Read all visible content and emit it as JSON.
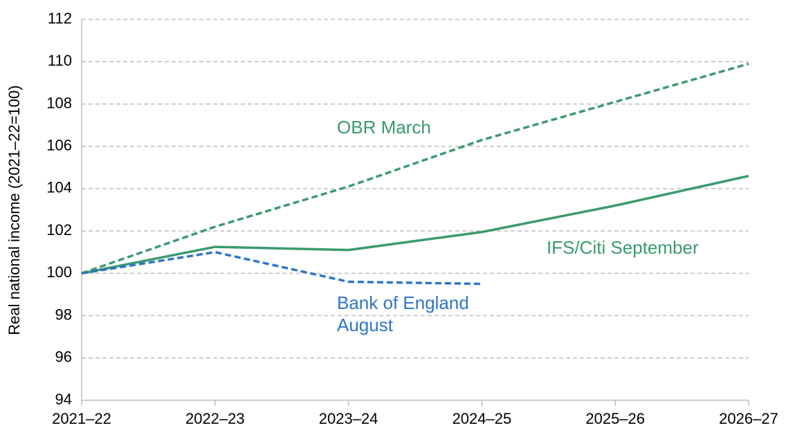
{
  "chart_data": {
    "type": "line",
    "y_axis_label": "Real national income (2021–22=100)",
    "categories": [
      "2021–22",
      "2022–23",
      "2023–24",
      "2024–25",
      "2025–26",
      "2026–27"
    ],
    "series": [
      {
        "name": "OBR March",
        "color": "#3a9a6e",
        "dashed": true,
        "values": [
          100,
          102.2,
          104.1,
          106.3,
          108.1,
          109.9
        ]
      },
      {
        "name": "IFS/Citi September",
        "color": "#3a9a6e",
        "dashed": false,
        "values": [
          100,
          101.25,
          101.1,
          101.95,
          103.2,
          104.6
        ]
      },
      {
        "name": "Bank of England August",
        "color": "#2e75c6",
        "dashed": true,
        "values": [
          100,
          101.0,
          99.6,
          99.5,
          null,
          null
        ]
      }
    ],
    "ylim": [
      94,
      112
    ],
    "yticks": [
      94,
      96,
      98,
      100,
      102,
      104,
      106,
      108,
      110,
      112
    ],
    "grid": true
  }
}
